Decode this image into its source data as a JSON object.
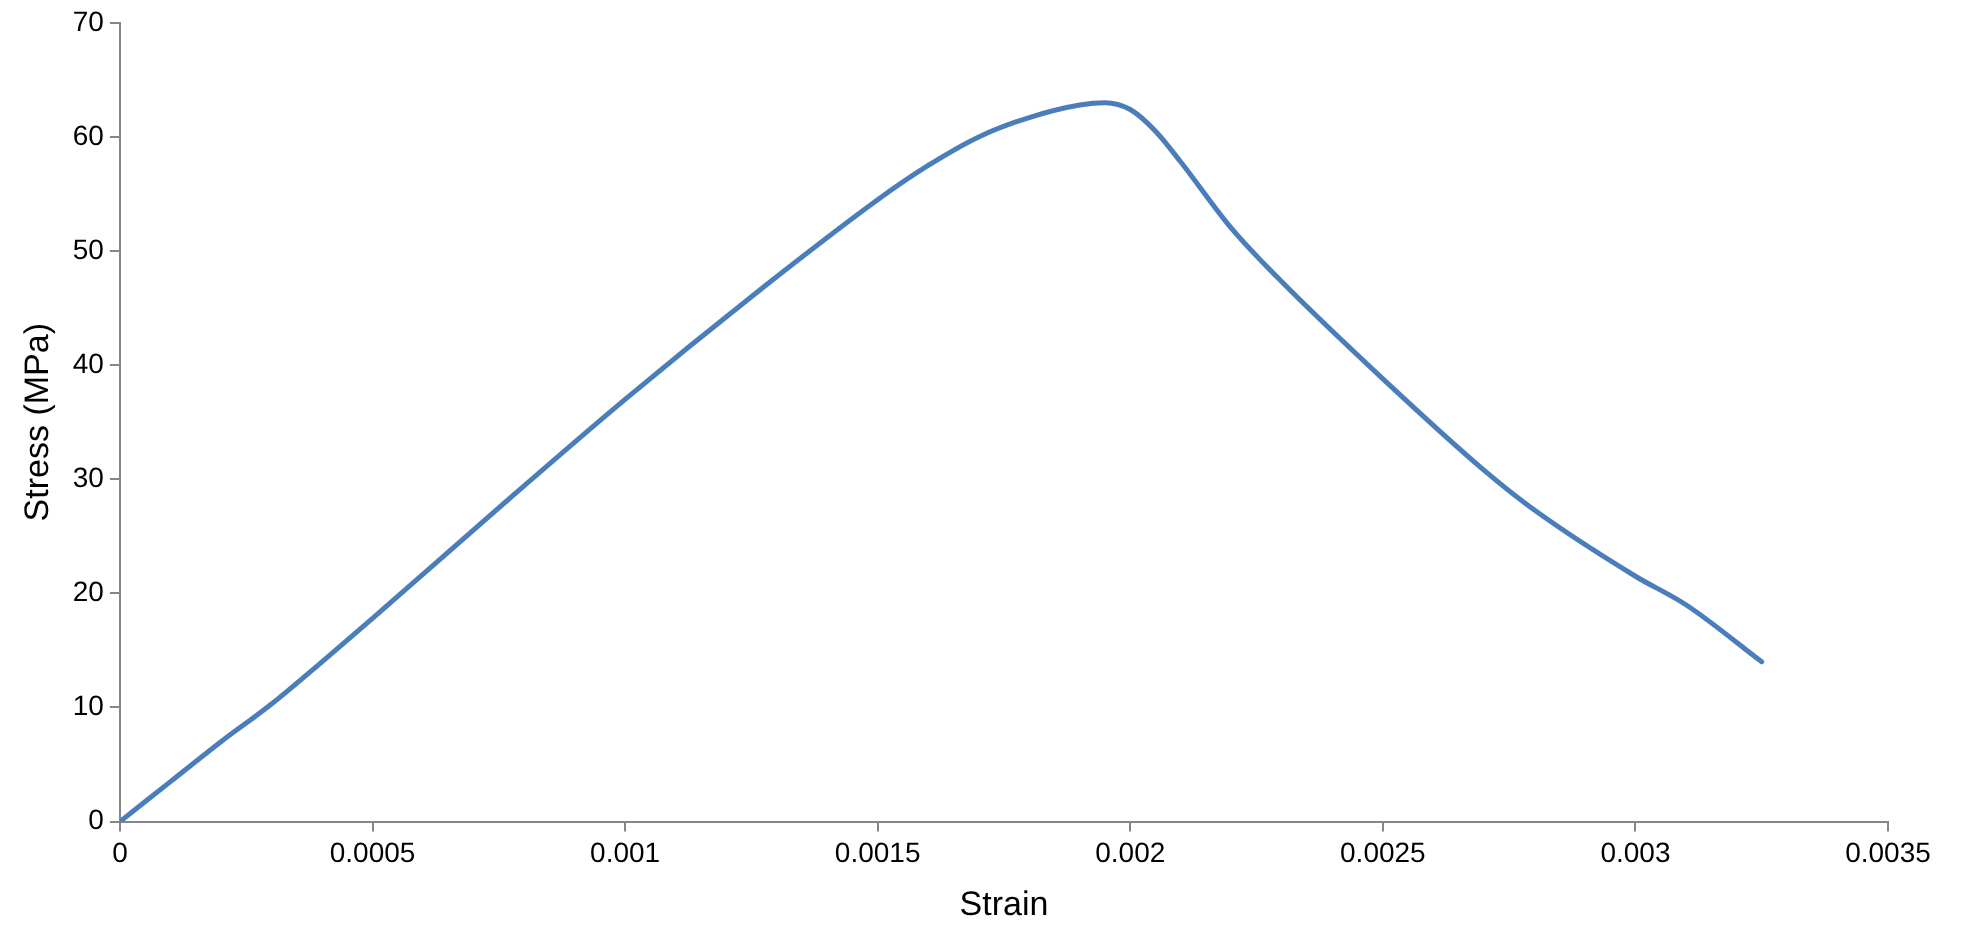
{
  "chart_data": {
    "type": "line",
    "xlabel": "Strain",
    "ylabel": "Stress (MPa)",
    "x": [
      0,
      0.0001,
      0.0002,
      0.0003,
      0.0004,
      0.0005,
      0.00075,
      0.001,
      0.00125,
      0.0015,
      0.0016,
      0.0017,
      0.0018,
      0.0019,
      0.00195,
      0.002,
      0.00205,
      0.0021,
      0.0022,
      0.0023,
      0.0025,
      0.0027,
      0.0028,
      0.003,
      0.0031,
      0.00325
    ],
    "series": [
      {
        "color": "#4a7ebb",
        "values": [
          0,
          3.5,
          7,
          10.3,
          14,
          17.8,
          27.5,
          37,
          46,
          54.5,
          57.5,
          60,
          61.7,
          62.8,
          63,
          62.4,
          60.5,
          57.8,
          52,
          47.3,
          38.8,
          30.8,
          27.3,
          21.5,
          19,
          14
        ]
      }
    ],
    "xlim": [
      0,
      0.0035
    ],
    "xticks": [
      0,
      0.0005,
      0.001,
      0.0015,
      0.002,
      0.0025,
      0.003,
      0.0035
    ],
    "ylim": [
      0,
      70
    ],
    "yticks": [
      0,
      10,
      20,
      30,
      40,
      50,
      60,
      70
    ],
    "grid": false,
    "legend": false,
    "marker": "none",
    "line_style": "solid"
  }
}
